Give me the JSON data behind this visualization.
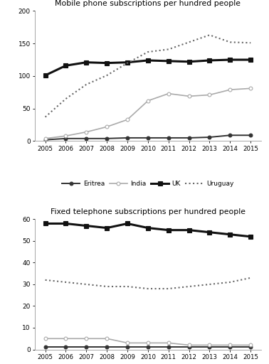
{
  "years": [
    2005,
    2006,
    2007,
    2008,
    2009,
    2010,
    2011,
    2012,
    2013,
    2014,
    2015
  ],
  "mobile": {
    "title": "Mobile phone subscriptions per hundred people",
    "ylim": [
      0,
      200
    ],
    "yticks": [
      0,
      50,
      100,
      150,
      200
    ],
    "Eritrea": [
      2,
      4,
      4,
      4,
      5,
      5,
      5,
      5,
      6,
      9,
      9
    ],
    "India": [
      4,
      8,
      14,
      22,
      33,
      62,
      73,
      69,
      71,
      79,
      81
    ],
    "UK": [
      101,
      116,
      121,
      120,
      121,
      124,
      123,
      122,
      124,
      125,
      125
    ],
    "Uruguay": [
      37,
      65,
      87,
      101,
      120,
      137,
      141,
      152,
      163,
      152,
      151
    ]
  },
  "fixed": {
    "title": "Fixed telephone subscriptions per hundred people",
    "ylim": [
      0,
      60
    ],
    "yticks": [
      0,
      10,
      20,
      30,
      40,
      50,
      60
    ],
    "Eritrea": [
      1,
      1,
      1,
      1,
      1,
      1,
      1,
      1,
      1,
      1,
      1
    ],
    "India": [
      5,
      5,
      5,
      5,
      3,
      3,
      3,
      2,
      2,
      2,
      2
    ],
    "UK": [
      58,
      58,
      57,
      56,
      58,
      56,
      55,
      55,
      54,
      53,
      52
    ],
    "Uruguay": [
      32,
      31,
      30,
      29,
      29,
      28,
      28,
      29,
      30,
      31,
      33
    ]
  },
  "line_styles": {
    "Eritrea": {
      "color": "#333333",
      "linestyle": "-",
      "marker": "o",
      "markersize": 3.5,
      "linewidth": 1.4,
      "markerfacecolor": "#333333"
    },
    "India": {
      "color": "#aaaaaa",
      "linestyle": "-",
      "marker": "o",
      "markersize": 3.5,
      "linewidth": 1.2,
      "markerfacecolor": "white"
    },
    "UK": {
      "color": "#111111",
      "linestyle": "-",
      "marker": "s",
      "markersize": 4,
      "linewidth": 2.2,
      "markerfacecolor": "#111111"
    },
    "Uruguay": {
      "color": "#666666",
      "linestyle": ":",
      "marker": "None",
      "linewidth": 1.5,
      "markerfacecolor": "#666666"
    }
  },
  "legend_order": [
    "Eritrea",
    "India",
    "UK",
    "Uruguay"
  ],
  "background_color": "#ffffff"
}
